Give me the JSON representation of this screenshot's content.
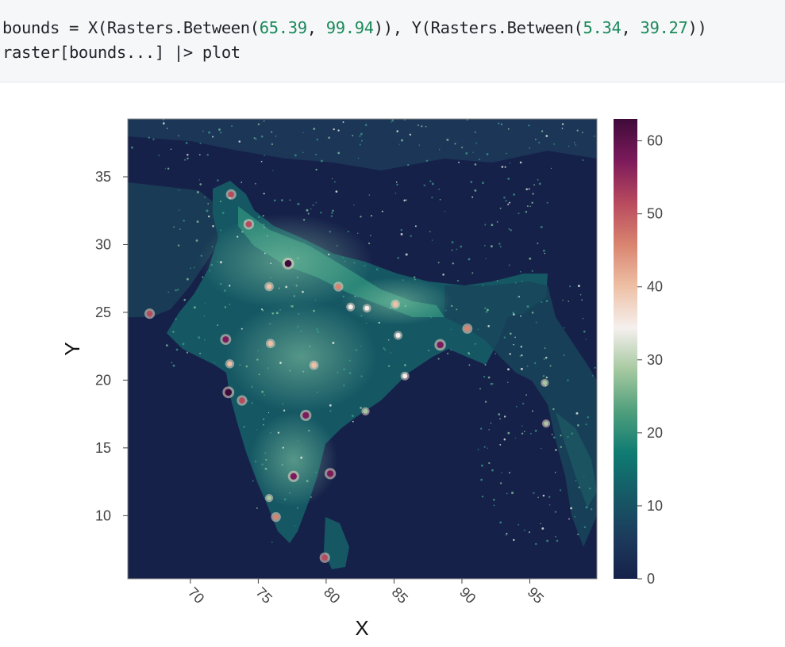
{
  "code": {
    "line1": [
      {
        "t": "bounds = X(Rasters.Between(",
        "k": "plain"
      },
      {
        "t": "65.39",
        "k": "num"
      },
      {
        "t": ", ",
        "k": "plain"
      },
      {
        "t": "99.94",
        "k": "num"
      },
      {
        "t": ")), Y(Rasters.Between(",
        "k": "plain"
      },
      {
        "t": "5.34",
        "k": "num"
      },
      {
        "t": ", ",
        "k": "plain"
      },
      {
        "t": "39.27",
        "k": "num"
      },
      {
        "t": "))",
        "k": "plain"
      }
    ],
    "line2": [
      {
        "t": "raster[bounds...] |> plot",
        "k": "plain"
      }
    ]
  },
  "colors": {
    "background": "#16214a",
    "number_literal": "#1a8a5a",
    "code_bg": "#f6f7f9",
    "colormap": [
      "#16214a",
      "#1c3b5c",
      "#155a66",
      "#0f7b72",
      "#4f9f7c",
      "#a6c9a0",
      "#f5f0ee",
      "#eec0a5",
      "#d9846f",
      "#b84a5e",
      "#7d1a5b",
      "#3f0a3a"
    ]
  },
  "chart_data": {
    "type": "heatmap",
    "title": "",
    "xlabel": "X",
    "ylabel": "Y",
    "xlim": [
      65.39,
      99.94
    ],
    "ylim": [
      5.34,
      39.27
    ],
    "x_ticks": [
      70,
      75,
      80,
      85,
      90,
      95
    ],
    "y_ticks": [
      10,
      15,
      20,
      25,
      30,
      35
    ],
    "colorbar": {
      "min": 0,
      "max": 63,
      "ticks": [
        0,
        10,
        20,
        30,
        40,
        50,
        60
      ],
      "colormap": "curl (navy-teal-white-salmon-purple)"
    },
    "description": "Night-time lights raster over South Asia",
    "hotspots": [
      {
        "x": 77.2,
        "y": 28.6,
        "v": 63
      },
      {
        "x": 72.8,
        "y": 19.1,
        "v": 62
      },
      {
        "x": 88.4,
        "y": 22.6,
        "v": 60
      },
      {
        "x": 80.3,
        "y": 13.1,
        "v": 58
      },
      {
        "x": 77.6,
        "y": 12.9,
        "v": 58
      },
      {
        "x": 78.5,
        "y": 17.4,
        "v": 58
      },
      {
        "x": 72.6,
        "y": 23.0,
        "v": 55
      },
      {
        "x": 74.3,
        "y": 31.5,
        "v": 52
      },
      {
        "x": 73.8,
        "y": 18.5,
        "v": 50
      },
      {
        "x": 80.9,
        "y": 26.9,
        "v": 45
      },
      {
        "x": 90.4,
        "y": 23.8,
        "v": 48
      },
      {
        "x": 67.0,
        "y": 24.9,
        "v": 50
      },
      {
        "x": 75.9,
        "y": 22.7,
        "v": 40
      },
      {
        "x": 79.1,
        "y": 21.1,
        "v": 40
      },
      {
        "x": 85.3,
        "y": 23.3,
        "v": 35
      },
      {
        "x": 85.1,
        "y": 25.6,
        "v": 38
      },
      {
        "x": 75.8,
        "y": 26.9,
        "v": 40
      },
      {
        "x": 73.0,
        "y": 33.7,
        "v": 50
      },
      {
        "x": 76.3,
        "y": 9.9,
        "v": 45
      },
      {
        "x": 79.9,
        "y": 6.9,
        "v": 50
      },
      {
        "x": 85.8,
        "y": 20.3,
        "v": 35
      },
      {
        "x": 82.9,
        "y": 17.7,
        "v": 30
      },
      {
        "x": 81.8,
        "y": 25.4,
        "v": 35
      },
      {
        "x": 83.0,
        "y": 25.3,
        "v": 33
      },
      {
        "x": 72.9,
        "y": 21.2,
        "v": 38
      },
      {
        "x": 96.2,
        "y": 16.8,
        "v": 30
      },
      {
        "x": 96.1,
        "y": 19.8,
        "v": 28
      },
      {
        "x": 75.8,
        "y": 11.3,
        "v": 30
      }
    ]
  }
}
